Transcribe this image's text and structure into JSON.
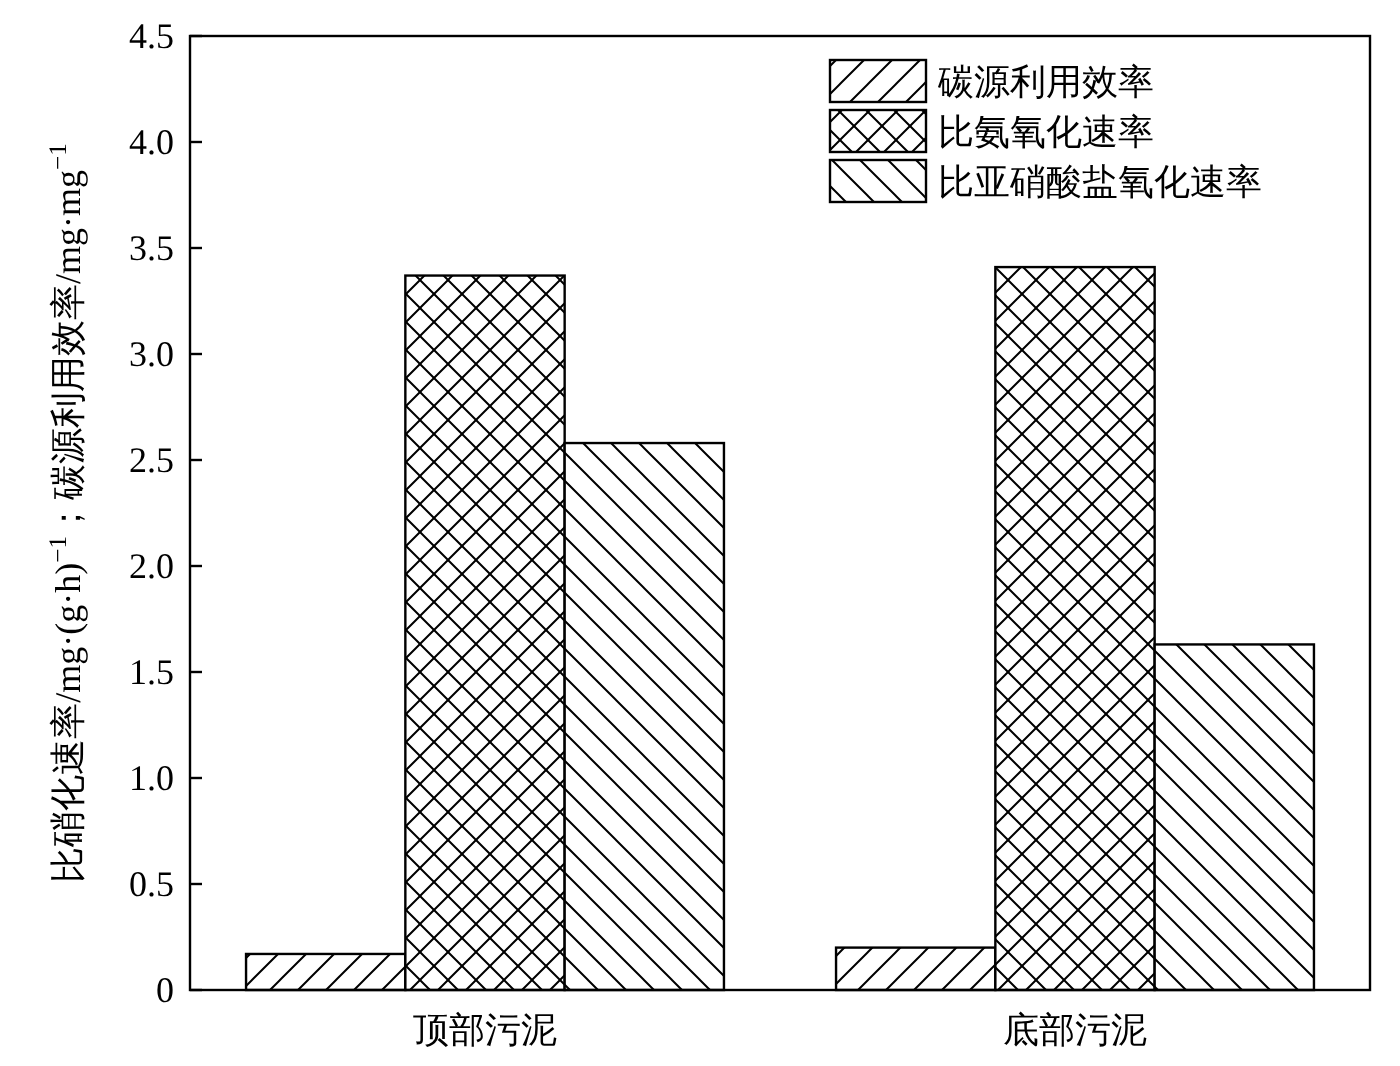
{
  "chart_data": {
    "type": "bar",
    "categories": [
      "顶部污泥",
      "底部污泥"
    ],
    "series": [
      {
        "name": "碳源利用效率",
        "color": "#000000",
        "values": [
          0.17,
          0.2
        ]
      },
      {
        "name": "比氨氧化速率",
        "color": "#000000",
        "values": [
          3.37,
          3.41
        ]
      },
      {
        "name": "比亚硝酸盐氧化速率",
        "color": "#000000",
        "values": [
          2.58,
          1.63
        ]
      }
    ],
    "ylabel": "比硝化速率/mg·(g·h)$^{−1}$；碳源利用效率/mg·mg$^{−1}$",
    "ylim": [
      0,
      4.5
    ],
    "yticks": [
      0,
      0.5,
      {
        "value": 1,
        "label": "1.0"
      },
      1.5,
      {
        "value": 2,
        "label": "2.0"
      },
      2.5,
      {
        "value": 3,
        "label": "3.0"
      },
      3.5,
      {
        "value": 4,
        "label": "4.0"
      },
      4.5
    ],
    "grid": false,
    "legend": "top right"
  }
}
